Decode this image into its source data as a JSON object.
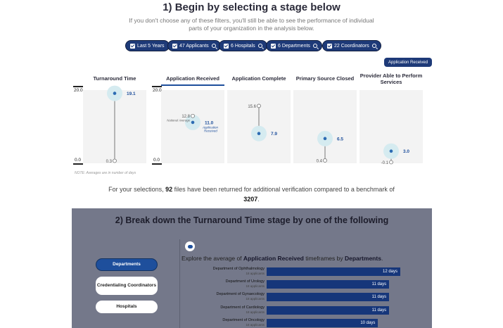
{
  "section1": {
    "title": "1) Begin by selecting a stage below",
    "subtitle": "If you don't choose any of these filters, you'll still be able to see the performance of individual parts of your organization in the analysis below."
  },
  "filters": [
    {
      "label": "Last 5 Years",
      "searchable": false
    },
    {
      "label": "47 Applicants",
      "searchable": true
    },
    {
      "label": "6 Hospitals",
      "searchable": true
    },
    {
      "label": "6 Departments",
      "searchable": true
    },
    {
      "label": "22 Coordinators",
      "searchable": true
    }
  ],
  "selected_stage_chip": "Application Received",
  "stages": {
    "axis_max_label": "20.0",
    "axis_min_label": "0.0",
    "ylim": [
      0,
      20
    ],
    "columns": [
      {
        "title": "Turnaround Time",
        "value": 19.1,
        "value_label": "19.1",
        "benchmark": 0.3,
        "benchmark_label": "0.3"
      },
      {
        "title": "Application Received",
        "value": 11.0,
        "value_label": "11.0",
        "value_sub": "Application Received",
        "benchmark": 12.8,
        "benchmark_label": "12.8",
        "benchmark_sub": "National Average"
      },
      {
        "title": "Application Complete",
        "value": 7.9,
        "value_label": "7.9",
        "benchmark": 15.6,
        "benchmark_label": "15.6"
      },
      {
        "title": "Primary Source Closed",
        "value": 6.5,
        "value_label": "6.5",
        "benchmark": 0.4,
        "benchmark_label": "0.4"
      },
      {
        "title": "Provider Able to Perform Services",
        "value": 3.0,
        "value_label": "3.0",
        "benchmark": -0.1,
        "benchmark_label": "-0.1"
      }
    ],
    "note": "NOTE: Averages are in number of days"
  },
  "summary": {
    "part1": "For your selections, ",
    "count": "92",
    "part2": " files have been returned for additional verification compared to a benchmark of ",
    "benchmark": "3207",
    "part3": "."
  },
  "section2": {
    "title": "2) Break down the Turnaround Time stage by one of the following",
    "buttons": [
      "Departments",
      "Credentialing Coordinators",
      "Hospitals"
    ],
    "explore": {
      "prefix": "Explore the average of ",
      "stage": "Application Received",
      "middle": " timeframes by ",
      "dimension": "Departments",
      "suffix": "."
    },
    "chart_data": {
      "type": "bar",
      "orientation": "horizontal",
      "categories": [
        "Department of Ophthalmology",
        "Department of Urology",
        "Department of Gynaecology",
        "Department of Cardiology",
        "Department of Oncology"
      ],
      "sublabels": [
        "18 applicants",
        "18 applicants",
        "18 applicants",
        "18 applicants",
        "18 applicants"
      ],
      "values": [
        12,
        11,
        11,
        11,
        10
      ],
      "value_labels": [
        "12 days",
        "11 days",
        "11 days",
        "11 days",
        "10 days"
      ],
      "color": "#16367a"
    }
  },
  "colors": {
    "navy": "#1e3a78",
    "accent_blue": "#1e4f9c",
    "dot_blue": "#2d6cb3",
    "dot_halo": "#d5ebf0",
    "section2_bg": "#74788a"
  }
}
